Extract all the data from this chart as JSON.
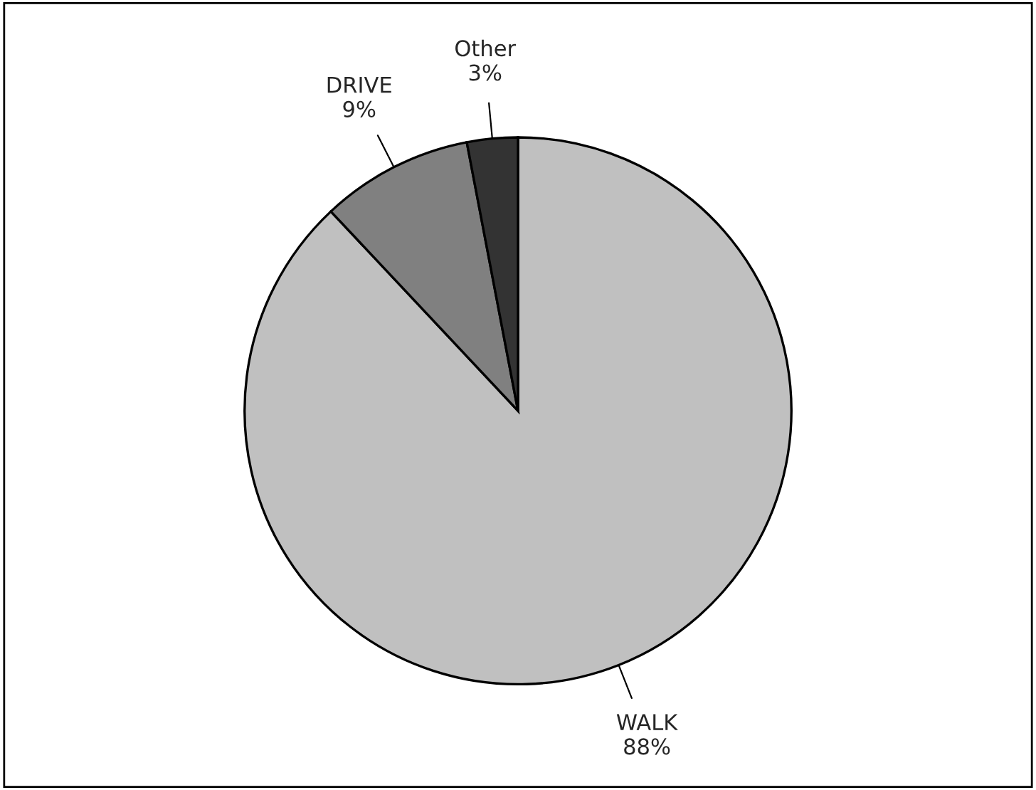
{
  "chart_data": {
    "type": "pie",
    "categories": [
      "WALK",
      "DRIVE",
      "Other"
    ],
    "values": [
      88,
      9,
      3
    ],
    "value_labels": [
      "88%",
      "9%",
      "3%"
    ],
    "colors": [
      "#c0c0c0",
      "#808080",
      "#333333"
    ],
    "legend": false
  }
}
